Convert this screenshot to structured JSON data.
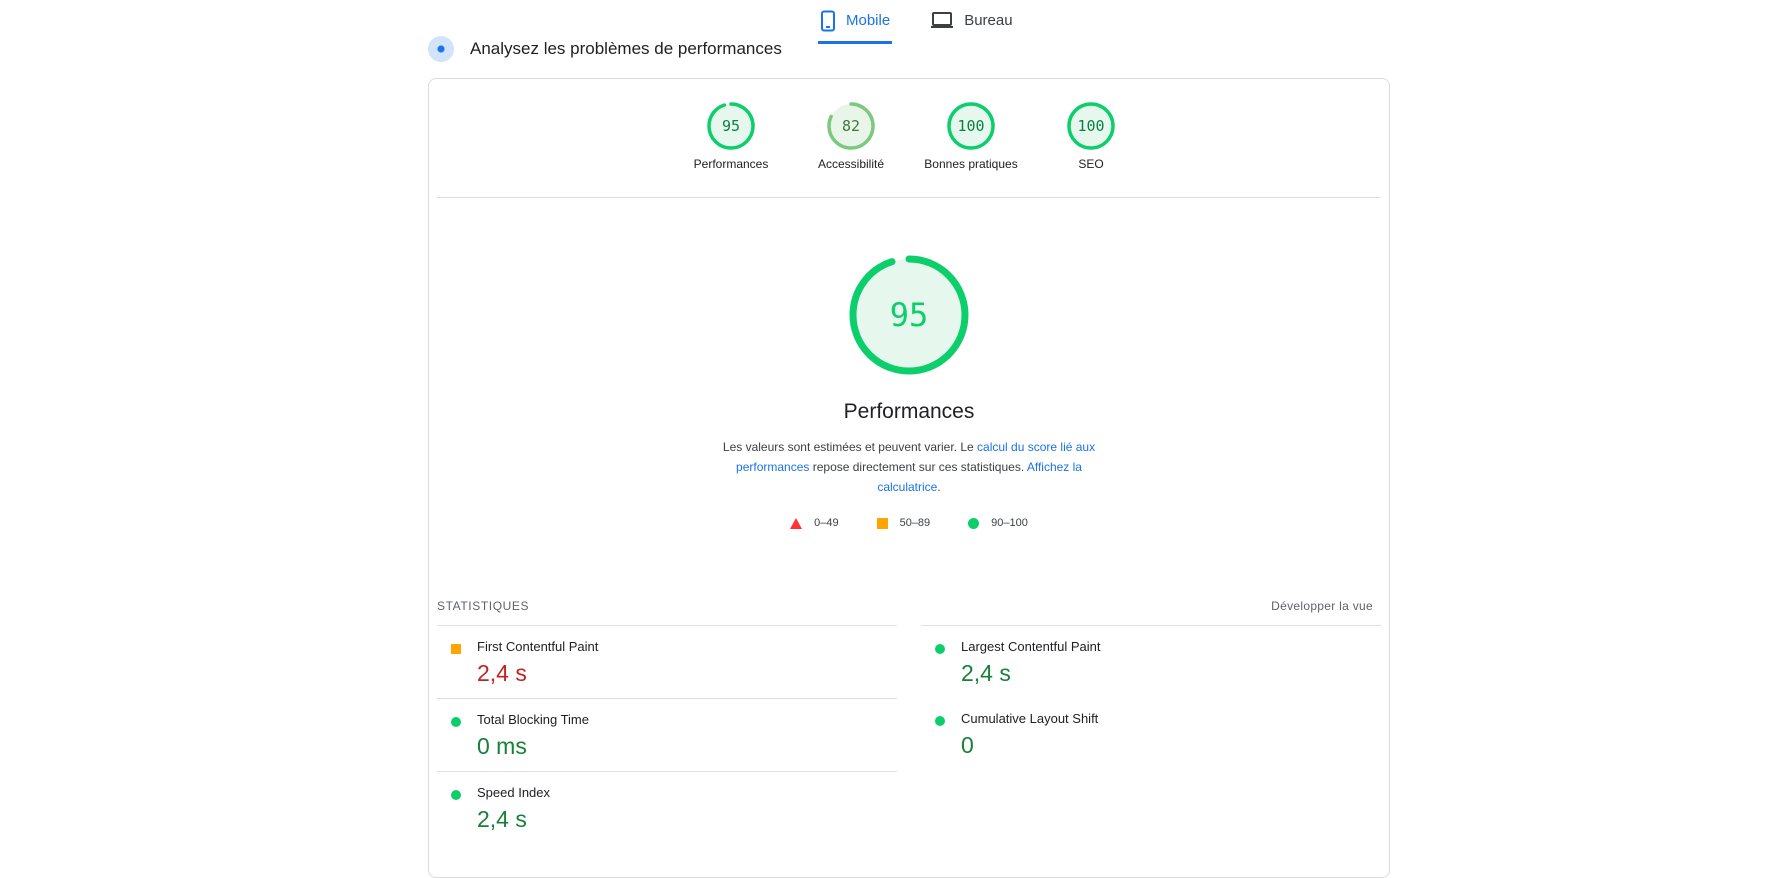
{
  "tabs": [
    {
      "label": "Mobile",
      "icon": "smartphone-icon",
      "active": true
    },
    {
      "label": "Bureau",
      "icon": "laptop-icon",
      "active": false
    }
  ],
  "section_title": "Analysez les problèmes de performances",
  "colors": {
    "accent": "#1a73e8",
    "pass": "#0cce6b",
    "average": "#ffa400",
    "fail": "#ff3333"
  },
  "categories": [
    {
      "score": "95",
      "label": "Performances",
      "fraction": 0.95,
      "color": "#0cce6b"
    },
    {
      "score": "82",
      "label": "Accessibilité",
      "fraction": 0.82,
      "color": "#7bc97e"
    },
    {
      "score": "100",
      "label": "Bonnes pratiques",
      "fraction": 1.0,
      "color": "#0cce6b"
    },
    {
      "score": "100",
      "label": "SEO",
      "fraction": 1.0,
      "color": "#0cce6b"
    }
  ],
  "main": {
    "score": "95",
    "fraction": 0.95,
    "title": "Performances",
    "desc_part1": "Les valeurs sont estimées et peuvent varier. Le ",
    "desc_link1": "calcul du score lié aux performances",
    "desc_part2": " repose directement sur ces statistiques. ",
    "desc_link2": "Affichez la calculatrice",
    "desc_part3": "."
  },
  "legend": [
    "0–49",
    "50–89",
    "90–100"
  ],
  "stats": {
    "heading": "STATISTIQUES",
    "expand": "Développer la vue",
    "metrics": [
      {
        "name": "First Contentful Paint",
        "value": "2,4 s",
        "status": "average"
      },
      {
        "name": "Largest Contentful Paint",
        "value": "2,4 s",
        "status": "pass"
      },
      {
        "name": "Total Blocking Time",
        "value": "0 ms",
        "status": "pass"
      },
      {
        "name": "Cumulative Layout Shift",
        "value": "0",
        "status": "pass"
      },
      {
        "name": "Speed Index",
        "value": "2,4 s",
        "status": "pass"
      }
    ]
  }
}
